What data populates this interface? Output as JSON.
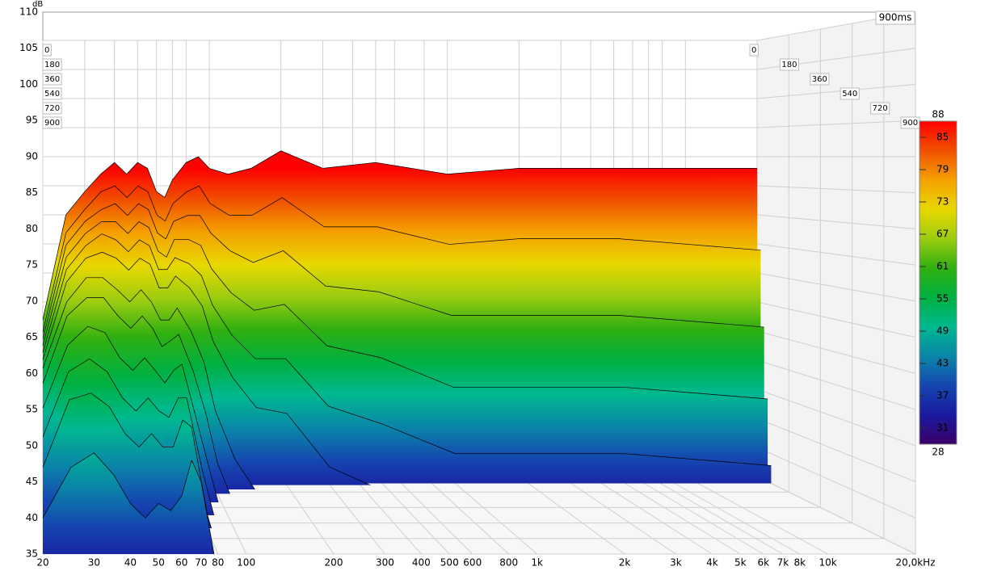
{
  "chart_data": {
    "type": "waterfall",
    "y_unit": "dB",
    "time_label": "900ms",
    "x": [
      20,
      25,
      30,
      35,
      40,
      45,
      50,
      55,
      60,
      65,
      70,
      80,
      90,
      100,
      120,
      150,
      200,
      300,
      500,
      1000,
      2000,
      5000,
      10000,
      20000
    ],
    "z": [
      0,
      20,
      40,
      60,
      80,
      100,
      150,
      200,
      300,
      450,
      600,
      900
    ],
    "series": [
      {
        "values": [
          62,
          80,
          84,
          87,
          89,
          87,
          89,
          88,
          84,
          83,
          86,
          89,
          90,
          88,
          87,
          88,
          91,
          88,
          89,
          87,
          88,
          88,
          88,
          88
        ]
      },
      {
        "values": [
          60,
          77,
          81,
          84,
          85,
          83,
          85,
          84,
          80,
          79,
          82,
          84,
          85,
          82,
          80,
          80,
          83,
          78,
          78,
          75,
          76,
          76,
          75,
          74
        ]
      },
      {
        "values": [
          59,
          75,
          79,
          81,
          82,
          80,
          82,
          81,
          77,
          76,
          79,
          80,
          80,
          77,
          74,
          72,
          74,
          68,
          67,
          63,
          63,
          63,
          62,
          61
        ]
      },
      {
        "values": [
          58,
          73,
          77,
          79,
          79,
          77,
          79,
          78,
          74,
          73,
          76,
          76,
          75,
          71,
          67,
          64,
          65,
          58,
          56,
          51,
          51,
          51,
          50,
          49
        ]
      },
      {
        "values": [
          57,
          71,
          75,
          77,
          76,
          74,
          76,
          75,
          71,
          71,
          73,
          72,
          70,
          65,
          60,
          56,
          56,
          48,
          45,
          40,
          40,
          40,
          39,
          38
        ]
      },
      {
        "values": [
          56,
          69,
          73,
          74,
          73,
          71,
          73,
          72,
          68,
          68,
          70,
          68,
          65,
          59,
          53,
          48,
          47,
          38,
          34,
          30,
          30,
          30,
          30,
          30
        ]
      },
      {
        "values": [
          55,
          66,
          70,
          70,
          68,
          66,
          68,
          66,
          63,
          63,
          65,
          61,
          56,
          48,
          40,
          34,
          30,
          30,
          30,
          30,
          30,
          30,
          30,
          30
        ]
      },
      {
        "values": [
          53,
          64,
          67,
          67,
          64,
          62,
          64,
          62,
          59,
          60,
          61,
          55,
          48,
          40,
          32,
          30,
          30,
          30,
          30,
          30,
          30,
          30,
          30,
          30
        ]
      },
      {
        "values": [
          50,
          60,
          63,
          62,
          58,
          56,
          58,
          56,
          54,
          56,
          57,
          48,
          40,
          33,
          30,
          30,
          30,
          30,
          30,
          30,
          30,
          30,
          30,
          30
        ]
      },
      {
        "values": [
          47,
          57,
          59,
          57,
          53,
          51,
          53,
          51,
          50,
          53,
          53,
          42,
          34,
          30,
          30,
          30,
          30,
          30,
          30,
          30,
          30,
          30,
          30,
          30
        ]
      },
      {
        "values": [
          44,
          54,
          55,
          53,
          49,
          47,
          49,
          47,
          47,
          51,
          50,
          37,
          30,
          30,
          30,
          30,
          30,
          30,
          30,
          30,
          30,
          30,
          30,
          30
        ]
      },
      {
        "values": [
          40,
          47,
          49,
          46,
          42,
          40,
          42,
          41,
          43,
          48,
          45,
          32,
          30,
          30,
          30,
          30,
          30,
          30,
          30,
          30,
          30,
          30,
          30,
          30
        ]
      }
    ],
    "xlim": [
      20,
      20000
    ],
    "xticks": [
      20,
      30,
      40,
      50,
      60,
      70,
      80,
      100,
      200,
      300,
      400,
      500,
      600,
      800,
      {
        "value": 1000,
        "label": "1k"
      },
      {
        "value": 2000,
        "label": "2k"
      },
      {
        "value": 3000,
        "label": "3k"
      },
      {
        "value": 4000,
        "label": "4k"
      },
      {
        "value": 5000,
        "label": "5k"
      },
      {
        "value": 6000,
        "label": "6k"
      },
      {
        "value": 7000,
        "label": "7k"
      },
      {
        "value": 8000,
        "label": "8k"
      },
      {
        "value": 10000,
        "label": "10k"
      },
      {
        "value": 20000,
        "label": "20,0kHz"
      }
    ],
    "xscale": "log",
    "ylim": [
      35,
      110
    ],
    "yticks": [
      35,
      40,
      45,
      50,
      55,
      60,
      65,
      70,
      75,
      80,
      85,
      90,
      95,
      100,
      105,
      110
    ],
    "zlim": [
      0,
      900
    ],
    "zticks": [
      0,
      180,
      360,
      540,
      720,
      900
    ],
    "clim": [
      28,
      88
    ],
    "cticks": [
      31,
      37,
      43,
      49,
      55,
      61,
      67,
      73,
      79,
      85
    ],
    "colorscale": [
      "#3a0068",
      "#1a1aa0",
      "#1546b0",
      "#0a86a8",
      "#00b890",
      "#00b040",
      "#30b010",
      "#9ccc10",
      "#e8d800",
      "#f4a000",
      "#f05000",
      "#ff0000"
    ],
    "grid": true
  }
}
